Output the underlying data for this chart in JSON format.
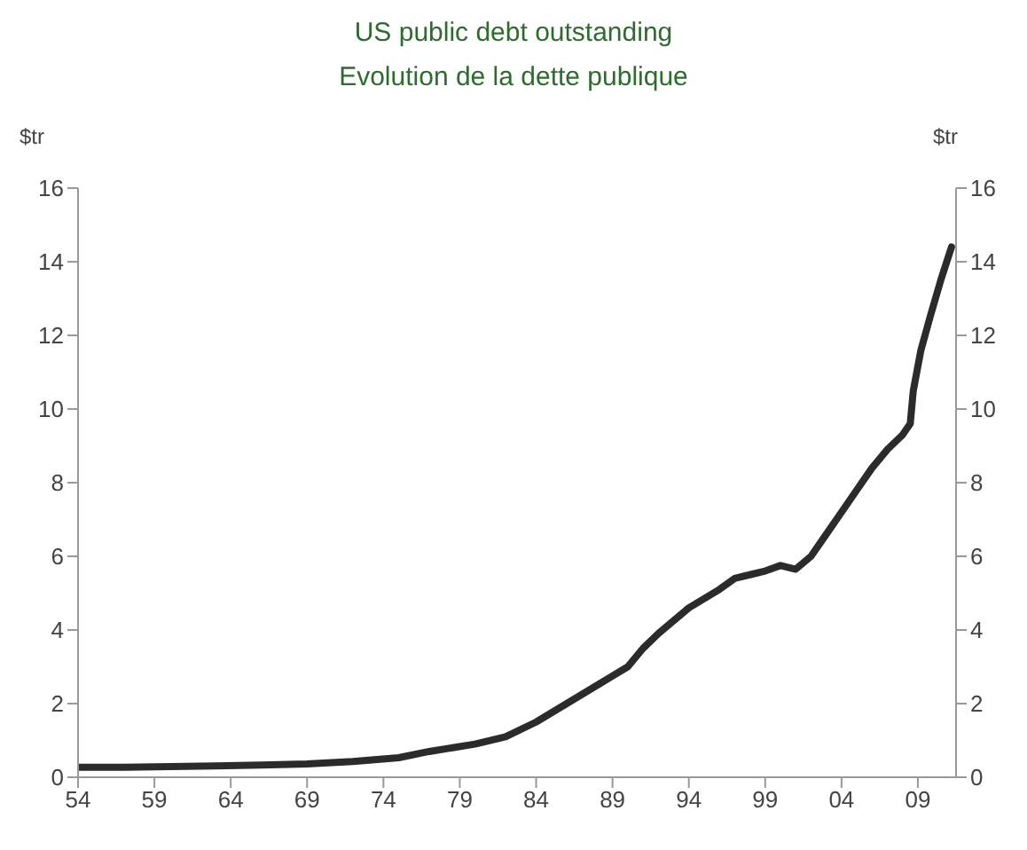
{
  "chart_data": {
    "type": "line",
    "title": "US public debt outstanding",
    "subtitle": "Evolution de la dette publique",
    "ylabel": "$tr",
    "y2label": "$tr",
    "xlim": [
      1954,
      2011.5
    ],
    "xticks": [
      {
        "value": 1954,
        "label": "54"
      },
      {
        "value": 1959,
        "label": "59"
      },
      {
        "value": 1964,
        "label": "64"
      },
      {
        "value": 1969,
        "label": "69"
      },
      {
        "value": 1974,
        "label": "74"
      },
      {
        "value": 1979,
        "label": "79"
      },
      {
        "value": 1984,
        "label": "84"
      },
      {
        "value": 1989,
        "label": "89"
      },
      {
        "value": 1994,
        "label": "94"
      },
      {
        "value": 1999,
        "label": "99"
      },
      {
        "value": 2004,
        "label": "04"
      },
      {
        "value": 2009,
        "label": "09"
      }
    ],
    "ylim": [
      0,
      16
    ],
    "yticks": [
      0,
      2,
      4,
      6,
      8,
      10,
      12,
      14,
      16
    ],
    "y2lim": [
      0,
      16
    ],
    "y2ticks": [
      0,
      2,
      4,
      6,
      8,
      10,
      12,
      14,
      16
    ],
    "grid": false,
    "legend": false,
    "marker": "none",
    "line_style": "solid",
    "series": [
      {
        "color": "#2b2b2b",
        "x": [
          1954,
          1957,
          1960,
          1963,
          1966,
          1969,
          1972,
          1975,
          1977,
          1980,
          1982,
          1984,
          1986,
          1988,
          1990,
          1991,
          1992,
          1994,
          1996,
          1997,
          1998,
          1999,
          2000,
          2001,
          2002,
          2003,
          2004,
          2005,
          2006,
          2007,
          2008,
          2008.5,
          2008.7,
          2009.2,
          2009.8,
          2010.5,
          2011.2
        ],
        "values": [
          0.27,
          0.27,
          0.29,
          0.31,
          0.33,
          0.36,
          0.43,
          0.53,
          0.7,
          0.9,
          1.1,
          1.5,
          2.0,
          2.5,
          3.0,
          3.5,
          3.9,
          4.6,
          5.1,
          5.4,
          5.5,
          5.6,
          5.75,
          5.65,
          6.0,
          6.6,
          7.2,
          7.8,
          8.4,
          8.9,
          9.3,
          9.6,
          10.5,
          11.6,
          12.5,
          13.5,
          14.4
        ]
      }
    ]
  }
}
